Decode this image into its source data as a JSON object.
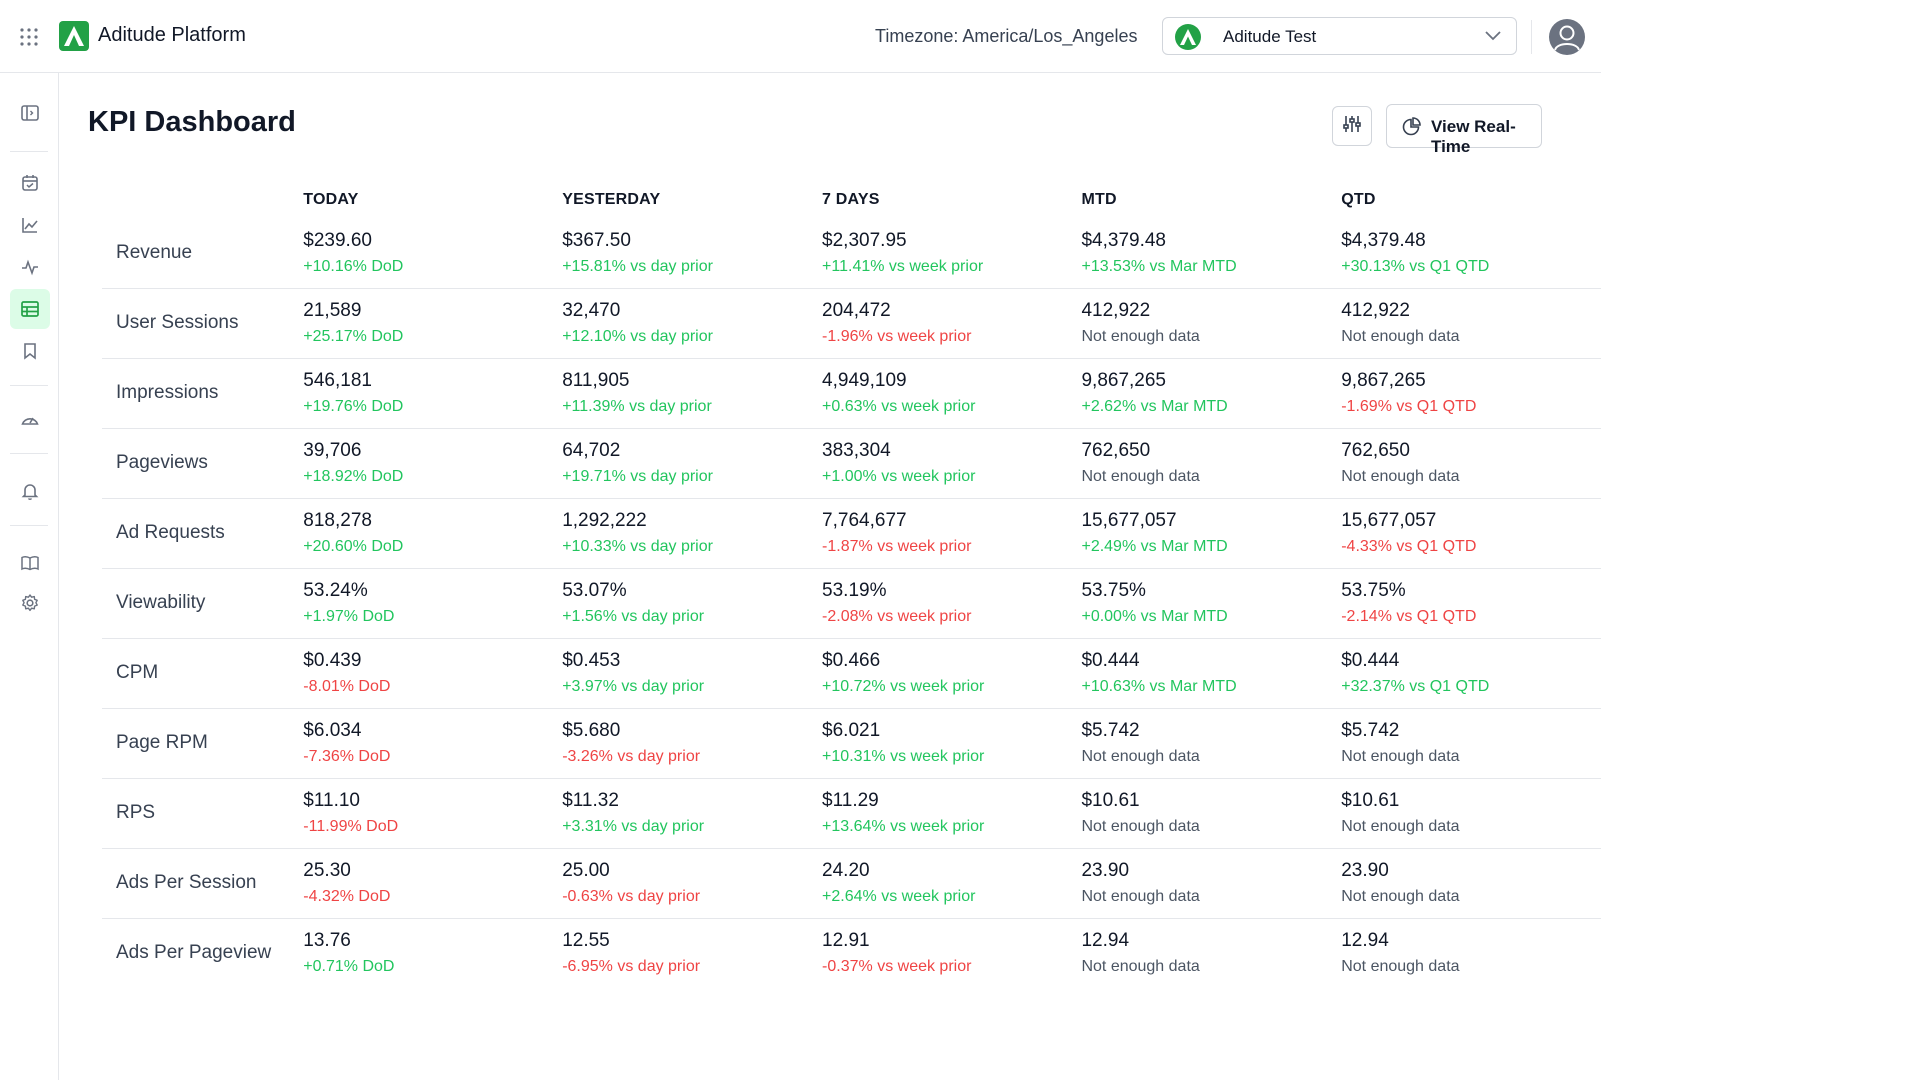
{
  "app": {
    "title": "Aditude Platform"
  },
  "header": {
    "timezone_label": "Timezone: America/Los_Angeles",
    "site_selector": {
      "selected": "Aditude Test"
    }
  },
  "page": {
    "title": "KPI Dashboard",
    "realtime_button": "View Real-Time"
  },
  "colors": {
    "brand": "#22a146",
    "positive": "#22c55e",
    "negative": "#ef4444",
    "neutral": "#4b5563",
    "active_nav_bg": "#dcfce7"
  },
  "sidebar": {
    "items": [
      {
        "icon": "panel-toggle-icon"
      },
      {
        "icon": "calendar-check-icon"
      },
      {
        "icon": "line-chart-icon"
      },
      {
        "icon": "activity-icon"
      },
      {
        "icon": "table-icon",
        "active": true
      },
      {
        "icon": "bookmark-icon"
      },
      {
        "icon": "gauge-icon"
      },
      {
        "icon": "bell-icon"
      },
      {
        "icon": "book-icon"
      },
      {
        "icon": "gear-icon"
      }
    ]
  },
  "table": {
    "columns": [
      "TODAY",
      "YESTERDAY",
      "7 DAYS",
      "MTD",
      "QTD"
    ],
    "rows": [
      {
        "metric": "Revenue",
        "cells": [
          {
            "value": "$239.60",
            "change": "+10.16% DoD",
            "trend": "pos"
          },
          {
            "value": "$367.50",
            "change": "+15.81% vs day prior",
            "trend": "pos"
          },
          {
            "value": "$2,307.95",
            "change": "+11.41% vs week prior",
            "trend": "pos"
          },
          {
            "value": "$4,379.48",
            "change": "+13.53% vs Mar MTD",
            "trend": "pos"
          },
          {
            "value": "$4,379.48",
            "change": "+30.13% vs Q1 QTD",
            "trend": "pos"
          }
        ]
      },
      {
        "metric": "User Sessions",
        "cells": [
          {
            "value": "21,589",
            "change": "+25.17% DoD",
            "trend": "pos"
          },
          {
            "value": "32,470",
            "change": "+12.10% vs day prior",
            "trend": "pos"
          },
          {
            "value": "204,472",
            "change": "-1.96% vs week prior",
            "trend": "neg"
          },
          {
            "value": "412,922",
            "change": "Not enough data",
            "trend": "neu"
          },
          {
            "value": "412,922",
            "change": "Not enough data",
            "trend": "neu"
          }
        ]
      },
      {
        "metric": "Impressions",
        "cells": [
          {
            "value": "546,181",
            "change": "+19.76% DoD",
            "trend": "pos"
          },
          {
            "value": "811,905",
            "change": "+11.39% vs day prior",
            "trend": "pos"
          },
          {
            "value": "4,949,109",
            "change": "+0.63% vs week prior",
            "trend": "pos"
          },
          {
            "value": "9,867,265",
            "change": "+2.62% vs Mar MTD",
            "trend": "pos"
          },
          {
            "value": "9,867,265",
            "change": "-1.69% vs Q1 QTD",
            "trend": "neg"
          }
        ]
      },
      {
        "metric": "Pageviews",
        "cells": [
          {
            "value": "39,706",
            "change": "+18.92% DoD",
            "trend": "pos"
          },
          {
            "value": "64,702",
            "change": "+19.71% vs day prior",
            "trend": "pos"
          },
          {
            "value": "383,304",
            "change": "+1.00% vs week prior",
            "trend": "pos"
          },
          {
            "value": "762,650",
            "change": "Not enough data",
            "trend": "neu"
          },
          {
            "value": "762,650",
            "change": "Not enough data",
            "trend": "neu"
          }
        ]
      },
      {
        "metric": "Ad Requests",
        "cells": [
          {
            "value": "818,278",
            "change": "+20.60% DoD",
            "trend": "pos"
          },
          {
            "value": "1,292,222",
            "change": "+10.33% vs day prior",
            "trend": "pos"
          },
          {
            "value": "7,764,677",
            "change": "-1.87% vs week prior",
            "trend": "neg"
          },
          {
            "value": "15,677,057",
            "change": "+2.49% vs Mar MTD",
            "trend": "pos"
          },
          {
            "value": "15,677,057",
            "change": "-4.33% vs Q1 QTD",
            "trend": "neg"
          }
        ]
      },
      {
        "metric": "Viewability",
        "cells": [
          {
            "value": "53.24%",
            "change": "+1.97% DoD",
            "trend": "pos"
          },
          {
            "value": "53.07%",
            "change": "+1.56% vs day prior",
            "trend": "pos"
          },
          {
            "value": "53.19%",
            "change": "-2.08% vs week prior",
            "trend": "neg"
          },
          {
            "value": "53.75%",
            "change": "+0.00% vs Mar MTD",
            "trend": "pos"
          },
          {
            "value": "53.75%",
            "change": "-2.14% vs Q1 QTD",
            "trend": "neg"
          }
        ]
      },
      {
        "metric": "CPM",
        "cells": [
          {
            "value": "$0.439",
            "change": "-8.01% DoD",
            "trend": "neg"
          },
          {
            "value": "$0.453",
            "change": "+3.97% vs day prior",
            "trend": "pos"
          },
          {
            "value": "$0.466",
            "change": "+10.72% vs week prior",
            "trend": "pos"
          },
          {
            "value": "$0.444",
            "change": "+10.63% vs Mar MTD",
            "trend": "pos"
          },
          {
            "value": "$0.444",
            "change": "+32.37% vs Q1 QTD",
            "trend": "pos"
          }
        ]
      },
      {
        "metric": "Page RPM",
        "cells": [
          {
            "value": "$6.034",
            "change": "-7.36% DoD",
            "trend": "neg"
          },
          {
            "value": "$5.680",
            "change": "-3.26% vs day prior",
            "trend": "neg"
          },
          {
            "value": "$6.021",
            "change": "+10.31% vs week prior",
            "trend": "pos"
          },
          {
            "value": "$5.742",
            "change": "Not enough data",
            "trend": "neu"
          },
          {
            "value": "$5.742",
            "change": "Not enough data",
            "trend": "neu"
          }
        ]
      },
      {
        "metric": "RPS",
        "cells": [
          {
            "value": "$11.10",
            "change": "-11.99% DoD",
            "trend": "neg"
          },
          {
            "value": "$11.32",
            "change": "+3.31% vs day prior",
            "trend": "pos"
          },
          {
            "value": "$11.29",
            "change": "+13.64% vs week prior",
            "trend": "pos"
          },
          {
            "value": "$10.61",
            "change": "Not enough data",
            "trend": "neu"
          },
          {
            "value": "$10.61",
            "change": "Not enough data",
            "trend": "neu"
          }
        ]
      },
      {
        "metric": "Ads Per Session",
        "cells": [
          {
            "value": "25.30",
            "change": "-4.32% DoD",
            "trend": "neg"
          },
          {
            "value": "25.00",
            "change": "-0.63% vs day prior",
            "trend": "neg"
          },
          {
            "value": "24.20",
            "change": "+2.64% vs week prior",
            "trend": "pos"
          },
          {
            "value": "23.90",
            "change": "Not enough data",
            "trend": "neu"
          },
          {
            "value": "23.90",
            "change": "Not enough data",
            "trend": "neu"
          }
        ]
      },
      {
        "metric": "Ads Per Pageview",
        "cells": [
          {
            "value": "13.76",
            "change": "+0.71% DoD",
            "trend": "pos"
          },
          {
            "value": "12.55",
            "change": "-6.95% vs day prior",
            "trend": "neg"
          },
          {
            "value": "12.91",
            "change": "-0.37% vs week prior",
            "trend": "neg"
          },
          {
            "value": "12.94",
            "change": "Not enough data",
            "trend": "neu"
          },
          {
            "value": "12.94",
            "change": "Not enough data",
            "trend": "neu"
          }
        ]
      }
    ]
  }
}
